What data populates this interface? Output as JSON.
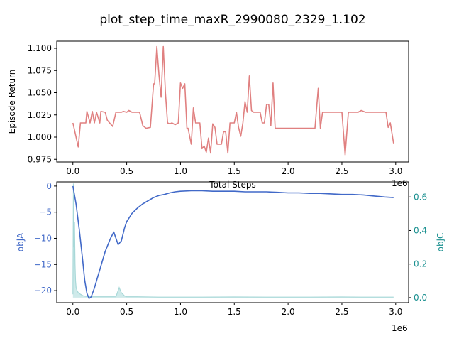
{
  "figure": {
    "title": "plot_step_time_maxR_2990080_2329_1.102"
  },
  "chart_data": [
    {
      "type": "line",
      "xlabel": "Total Steps",
      "ylabel": "Episode Return",
      "x_scale_label": "1e6",
      "xlim": [
        -0.15,
        3.12
      ],
      "ylim": [
        0.972,
        1.108
      ],
      "x_ticks": [
        0.0,
        0.5,
        1.0,
        1.5,
        2.0,
        2.5,
        3.0
      ],
      "x_tick_labels": [
        "0.0",
        "0.5",
        "1.0",
        "1.5",
        "2.0",
        "2.5",
        "3.0"
      ],
      "y_ticks": [
        0.975,
        1.0,
        1.025,
        1.05,
        1.075,
        1.1
      ],
      "y_tick_labels": [
        "0.975",
        "1.000",
        "1.025",
        "1.050",
        "1.075",
        "1.100"
      ],
      "series": [
        {
          "color": "#e08080",
          "x": [
            0.0,
            0.05,
            0.07,
            0.12,
            0.13,
            0.16,
            0.18,
            0.2,
            0.22,
            0.25,
            0.26,
            0.3,
            0.32,
            0.37,
            0.4,
            0.45,
            0.47,
            0.5,
            0.52,
            0.55,
            0.58,
            0.62,
            0.65,
            0.68,
            0.72,
            0.75,
            0.76,
            0.78,
            0.8,
            0.82,
            0.84,
            0.86,
            0.88,
            0.9,
            0.92,
            0.95,
            0.98,
            1.0,
            1.02,
            1.04,
            1.06,
            1.07,
            1.1,
            1.12,
            1.14,
            1.16,
            1.18,
            1.2,
            1.22,
            1.24,
            1.26,
            1.28,
            1.3,
            1.32,
            1.34,
            1.36,
            1.38,
            1.4,
            1.42,
            1.44,
            1.46,
            1.48,
            1.5,
            1.52,
            1.54,
            1.56,
            1.58,
            1.6,
            1.62,
            1.64,
            1.66,
            1.68,
            1.7,
            1.72,
            1.74,
            1.76,
            1.78,
            1.8,
            1.82,
            1.84,
            1.86,
            1.88,
            1.9,
            1.92,
            1.94,
            1.96,
            1.98,
            2.0,
            2.02,
            2.04,
            2.06,
            2.1,
            2.15,
            2.2,
            2.25,
            2.28,
            2.3,
            2.32,
            2.35,
            2.4,
            2.45,
            2.5,
            2.53,
            2.56,
            2.6,
            2.65,
            2.68,
            2.72,
            2.75,
            2.8,
            2.85,
            2.88,
            2.91,
            2.93,
            2.95,
            2.98
          ],
          "y": [
            1.016,
            0.989,
            1.016,
            1.016,
            1.029,
            1.016,
            1.029,
            1.016,
            1.028,
            1.016,
            1.029,
            1.028,
            1.019,
            1.012,
            1.028,
            1.028,
            1.029,
            1.028,
            1.03,
            1.028,
            1.028,
            1.028,
            1.013,
            1.01,
            1.011,
            1.06,
            1.06,
            1.102,
            1.07,
            1.045,
            1.102,
            1.05,
            1.016,
            1.015,
            1.016,
            1.014,
            1.016,
            1.061,
            1.055,
            1.06,
            1.01,
            1.01,
            0.992,
            1.033,
            1.016,
            1.016,
            1.016,
            0.987,
            0.99,
            0.983,
            0.999,
            0.982,
            1.015,
            1.011,
            0.992,
            0.992,
            0.992,
            1.006,
            1.006,
            0.982,
            1.016,
            1.016,
            1.016,
            1.028,
            1.011,
            1.001,
            1.016,
            1.04,
            1.028,
            1.069,
            1.03,
            1.028,
            1.028,
            1.028,
            1.028,
            1.016,
            1.016,
            1.037,
            1.037,
            1.013,
            1.061,
            1.01,
            1.01,
            1.01,
            1.01,
            1.01,
            1.01,
            1.01,
            1.01,
            1.01,
            1.01,
            1.01,
            1.01,
            1.01,
            1.01,
            1.055,
            1.01,
            1.028,
            1.028,
            1.028,
            1.028,
            1.028,
            0.98,
            1.028,
            1.028,
            1.028,
            1.03,
            1.028,
            1.028,
            1.028,
            1.028,
            1.028,
            1.028,
            1.011,
            1.016,
            0.993
          ]
        }
      ]
    },
    {
      "type": "line",
      "xlabel": "",
      "ylabel": "objA",
      "y2label": "objC",
      "x_scale_label": "1e6",
      "xlim": [
        -0.15,
        3.12
      ],
      "ylim": [
        -22.3,
        0.8
      ],
      "y2lim": [
        -0.03,
        0.69
      ],
      "x_ticks": [
        0.0,
        0.5,
        1.0,
        1.5,
        2.0,
        2.5,
        3.0
      ],
      "x_tick_labels": [
        "0.0",
        "0.5",
        "1.0",
        "1.5",
        "2.0",
        "2.5",
        "3.0"
      ],
      "y_ticks": [
        0,
        -5,
        -10,
        -15,
        -20
      ],
      "y_tick_labels": [
        "0",
        "−5",
        "−10",
        "−15",
        "−20"
      ],
      "y2_ticks": [
        0.0,
        0.2,
        0.4,
        0.6
      ],
      "y2_tick_labels": [
        "0.0",
        "0.2",
        "0.4",
        "0.6"
      ],
      "colors": {
        "objA": "#4169c8",
        "objC": "#1a9090"
      },
      "series": [
        {
          "axis": "left",
          "color": "#4169c8",
          "x": [
            0.0,
            0.03,
            0.06,
            0.09,
            0.11,
            0.13,
            0.15,
            0.17,
            0.2,
            0.25,
            0.3,
            0.35,
            0.38,
            0.42,
            0.45,
            0.48,
            0.5,
            0.55,
            0.6,
            0.65,
            0.7,
            0.75,
            0.8,
            0.85,
            0.9,
            0.95,
            1.0,
            1.1,
            1.2,
            1.3,
            1.4,
            1.5,
            1.6,
            1.7,
            1.8,
            1.9,
            2.0,
            2.1,
            2.2,
            2.3,
            2.4,
            2.5,
            2.6,
            2.7,
            2.8,
            2.9,
            2.98
          ],
          "y": [
            0.0,
            -3.5,
            -8.5,
            -14.0,
            -18.0,
            -20.5,
            -21.5,
            -21.2,
            -19.5,
            -16.0,
            -12.5,
            -10.0,
            -8.8,
            -11.2,
            -10.5,
            -8.0,
            -6.8,
            -5.2,
            -4.2,
            -3.4,
            -2.8,
            -2.2,
            -1.8,
            -1.6,
            -1.3,
            -1.1,
            -1.0,
            -0.9,
            -0.9,
            -1.0,
            -1.0,
            -1.0,
            -1.1,
            -1.1,
            -1.1,
            -1.2,
            -1.3,
            -1.3,
            -1.4,
            -1.4,
            -1.5,
            -1.6,
            -1.6,
            -1.7,
            -1.9,
            -2.1,
            -2.2
          ]
        },
        {
          "axis": "right",
          "color": "#a8d8d8",
          "x": [
            0.0,
            0.005,
            0.01,
            0.015,
            0.02,
            0.025,
            0.03,
            0.04,
            0.05,
            0.07,
            0.1,
            0.15,
            0.2,
            0.3,
            0.4,
            0.43,
            0.45,
            0.48,
            0.5,
            0.55,
            0.6,
            0.8,
            1.0,
            1.2,
            1.5,
            1.8,
            2.0,
            2.2,
            2.5,
            2.7,
            2.8,
            2.9,
            2.98
          ],
          "y": [
            0.02,
            0.68,
            0.3,
            0.45,
            0.2,
            0.1,
            0.06,
            0.04,
            0.03,
            0.02,
            0.01,
            0.005,
            0.005,
            0.005,
            0.005,
            0.06,
            0.03,
            0.01,
            0.005,
            0.005,
            0.005,
            0.003,
            0.003,
            0.003,
            0.004,
            0.003,
            0.003,
            0.003,
            0.004,
            0.003,
            0.003,
            0.003,
            0.003
          ]
        }
      ]
    }
  ]
}
